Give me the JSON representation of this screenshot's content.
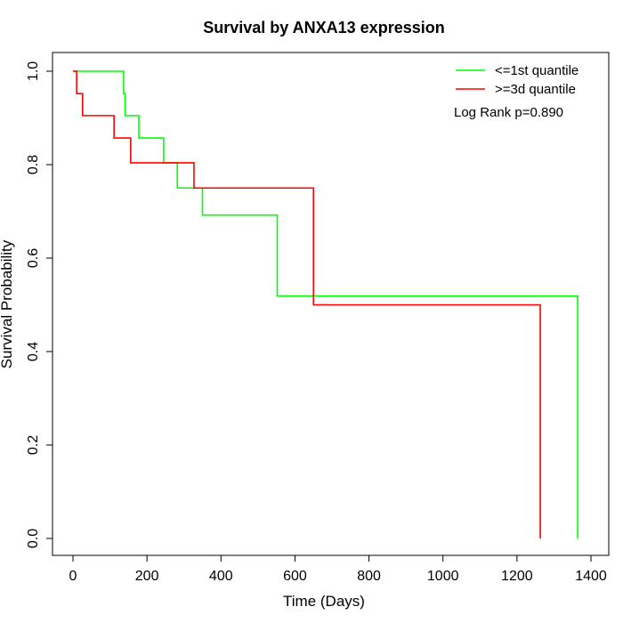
{
  "chart_data": {
    "type": "line",
    "title": "Survival by ANXA13 expression",
    "xlabel": "Time (Days)",
    "ylabel": "Survival Probability",
    "xlim": [
      0,
      1400
    ],
    "ylim": [
      0,
      1.0
    ],
    "x_ticks": [
      0,
      200,
      400,
      600,
      800,
      1000,
      1200,
      1400
    ],
    "y_ticks": [
      0.0,
      0.2,
      0.4,
      0.6,
      0.8,
      1.0
    ],
    "x_tick_labels": [
      "0",
      "200",
      "400",
      "600",
      "800",
      "1000",
      "1200",
      "1400"
    ],
    "y_tick_labels": [
      "0.0",
      "0.2",
      "0.4",
      "0.6",
      "0.8",
      "1.0"
    ],
    "grid": false,
    "legend_position": "top-right",
    "annotation": "Log Rank p=0.890",
    "series": [
      {
        "name": "<=1st quantile",
        "color": "#00ff00",
        "step_type": "post",
        "x": [
          0,
          137,
          141,
          178,
          245,
          282,
          350,
          552,
          1364,
          1364
        ],
        "y": [
          1.0,
          0.952,
          0.905,
          0.857,
          0.804,
          0.75,
          0.692,
          0.519,
          0.519,
          0.0
        ]
      },
      {
        "name": ">=3d quantile",
        "color": "#ff0000",
        "step_type": "post",
        "x": [
          0,
          10,
          26,
          111,
          156,
          327,
          650,
          1263,
          1263
        ],
        "y": [
          1.0,
          0.952,
          0.905,
          0.857,
          0.804,
          0.75,
          0.5,
          0.5,
          0.0
        ]
      }
    ]
  }
}
